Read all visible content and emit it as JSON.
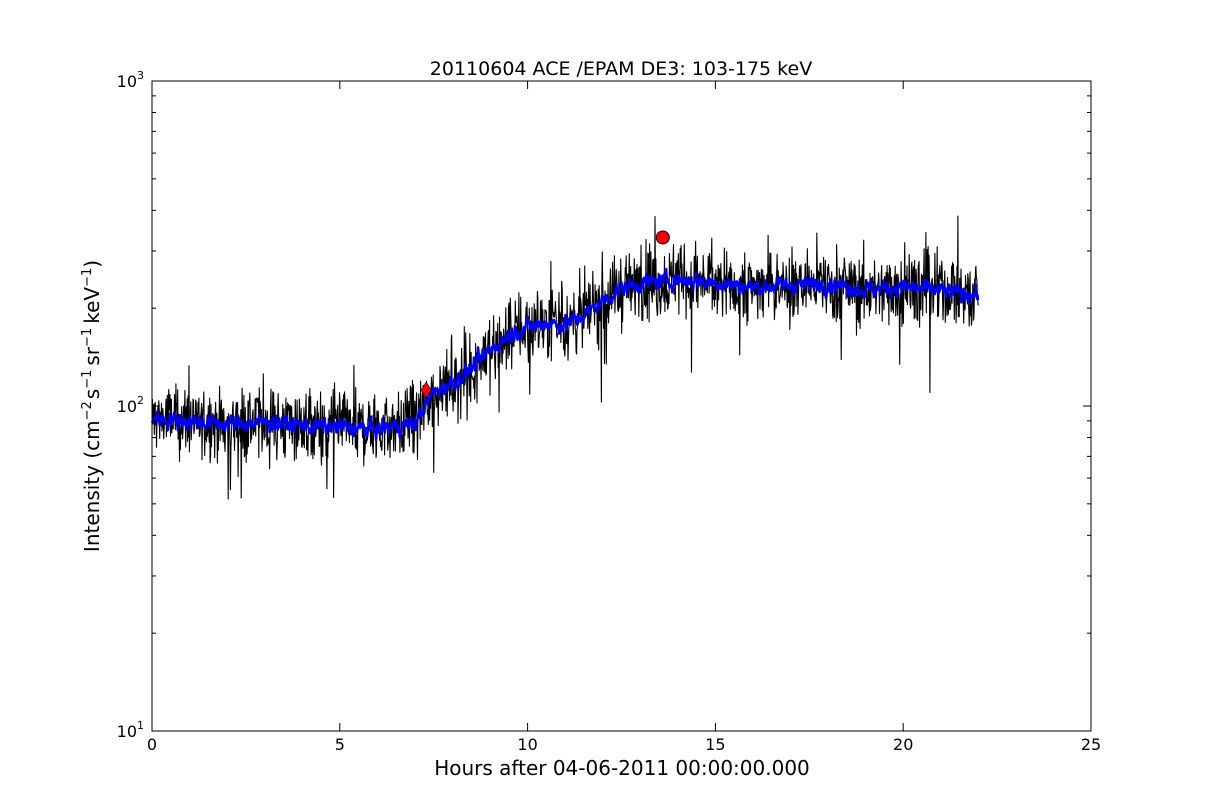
{
  "chart_data": {
    "type": "line",
    "title": "20110604 ACE /EPAM DE3: 103-175 keV",
    "xlabel": "Hours after 04-06-2011 00:00:00.000",
    "ylabel_parts": {
      "prefix": "Intensity (cm",
      "exp1": "−2",
      "mid1": "s",
      "exp2": "−1",
      "mid2": "sr",
      "exp3": "−1",
      "mid3": "keV",
      "exp4": "−1",
      "suffix": ")"
    },
    "yscale": "log",
    "xlim": [
      0,
      25
    ],
    "ylim": [
      10,
      1000
    ],
    "x_ticks": [
      "0",
      "5",
      "10",
      "15",
      "20",
      "25"
    ],
    "y_ticks": [
      {
        "value": 10,
        "base": "10",
        "exp": "1"
      },
      {
        "value": 100,
        "base": "10",
        "exp": "2"
      },
      {
        "value": 1000,
        "base": "10",
        "exp": "3"
      }
    ],
    "series": [
      {
        "color": "#000000",
        "style": "raw, noisy",
        "x": [
          0,
          1,
          2,
          3,
          4,
          5,
          6,
          7,
          7.5,
          8,
          8.5,
          9,
          9.5,
          10,
          10.5,
          11,
          11.5,
          12,
          12.5,
          13,
          13.5,
          14,
          15,
          16,
          17,
          18,
          19,
          20,
          21,
          22
        ],
        "values": [
          92,
          90,
          88,
          89,
          87,
          86,
          85,
          88,
          110,
          118,
          130,
          148,
          165,
          175,
          180,
          178,
          190,
          210,
          230,
          238,
          242,
          245,
          240,
          232,
          236,
          238,
          228,
          232,
          226,
          220
        ]
      },
      {
        "color": "#0000ff",
        "style": "smoothed",
        "x": [
          0,
          1,
          2,
          3,
          4,
          5,
          6,
          7,
          7.5,
          8,
          8.5,
          9,
          9.5,
          10,
          10.5,
          11,
          11.5,
          12,
          12.5,
          13,
          13.5,
          14,
          15,
          16,
          17,
          18,
          19,
          20,
          21,
          22
        ],
        "values": [
          92,
          90,
          88,
          89,
          87,
          86,
          85,
          88,
          110,
          118,
          130,
          148,
          165,
          175,
          180,
          178,
          190,
          210,
          230,
          238,
          242,
          245,
          240,
          232,
          236,
          238,
          228,
          232,
          226,
          220
        ]
      }
    ],
    "markers": [
      {
        "shape": "diamond",
        "color": "#ff0000",
        "x": 7.3,
        "y": 112
      },
      {
        "shape": "circle",
        "color": "#ff0000",
        "x": 13.6,
        "y": 330
      }
    ]
  }
}
